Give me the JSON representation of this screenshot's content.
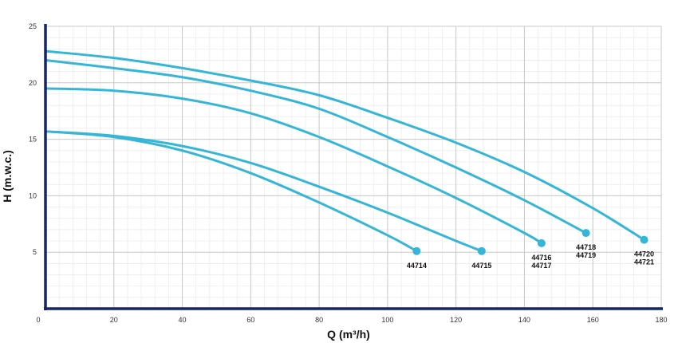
{
  "chart_data": {
    "type": "line",
    "title": "",
    "xlabel": "Q (m³/h)",
    "ylabel": "H (m.w.c.)",
    "xlim": [
      0,
      180
    ],
    "ylim": [
      0,
      25
    ],
    "x_ticks": [
      0,
      20,
      40,
      60,
      80,
      100,
      120,
      140,
      160,
      180
    ],
    "y_ticks": [
      5,
      10,
      15,
      20,
      25
    ],
    "x_minor_step": 4,
    "y_minor_step": 1,
    "grid": true,
    "legend": "none",
    "colors": {
      "curve": "#35b6d6",
      "axis": "#14256a",
      "grid_major": "#c8c8c8",
      "grid_minor": "#e9e9e9"
    },
    "series": [
      {
        "name": "44714",
        "label_lines": [
          "44714"
        ],
        "x": [
          0,
          20,
          40,
          60,
          80,
          100,
          108.5
        ],
        "y": [
          15.7,
          15.2,
          14,
          12,
          9.4,
          6.5,
          5.1
        ]
      },
      {
        "name": "44715",
        "label_lines": [
          "44715"
        ],
        "x": [
          0,
          20,
          40,
          60,
          80,
          100,
          120,
          127.5
        ],
        "y": [
          15.7,
          15.3,
          14.4,
          12.9,
          10.8,
          8.5,
          6,
          5.1
        ]
      },
      {
        "name": "44716 44717",
        "label_lines": [
          "44716",
          "44717"
        ],
        "x": [
          0,
          20,
          40,
          60,
          80,
          100,
          120,
          140,
          145
        ],
        "y": [
          19.5,
          19.3,
          18.6,
          17.3,
          15.2,
          12.6,
          9.8,
          6.7,
          5.8
        ]
      },
      {
        "name": "44718 44719",
        "label_lines": [
          "44718",
          "44719"
        ],
        "x": [
          0,
          20,
          40,
          60,
          80,
          100,
          120,
          140,
          158
        ],
        "y": [
          22,
          21.3,
          20.5,
          19.3,
          17.7,
          15.2,
          12.5,
          9.6,
          6.7
        ]
      },
      {
        "name": "44720 44721",
        "label_lines": [
          "44720",
          "44721"
        ],
        "x": [
          0,
          20,
          40,
          60,
          80,
          100,
          120,
          140,
          160,
          175
        ],
        "y": [
          22.8,
          22.2,
          21.3,
          20.2,
          18.9,
          16.9,
          14.7,
          12.1,
          8.9,
          6.1
        ]
      }
    ]
  }
}
